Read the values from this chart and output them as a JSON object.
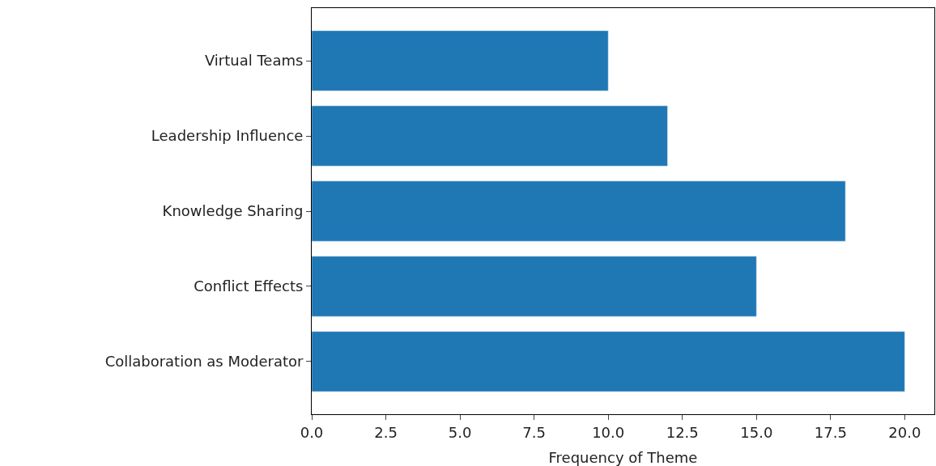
{
  "chart_data": {
    "type": "bar",
    "orientation": "horizontal",
    "xlabel": "Frequency of Theme",
    "categories": [
      "Virtual Teams",
      "Leadership Influence",
      "Knowledge Sharing",
      "Conflict Effects",
      "Collaboration as Moderator"
    ],
    "values": [
      10,
      12,
      18,
      15,
      20
    ],
    "color": "#1f77b4",
    "xlim": [
      0,
      21
    ],
    "xticks": [
      {
        "value": 0,
        "label": "0.0"
      },
      {
        "value": 2.5,
        "label": "2.5"
      },
      {
        "value": 5,
        "label": "5.0"
      },
      {
        "value": 7.5,
        "label": "7.5"
      },
      {
        "value": 10,
        "label": "10.0"
      },
      {
        "value": 12.5,
        "label": "12.5"
      },
      {
        "value": 15,
        "label": "15.0"
      },
      {
        "value": 17.5,
        "label": "17.5"
      },
      {
        "value": 20,
        "label": "20.0"
      }
    ]
  }
}
